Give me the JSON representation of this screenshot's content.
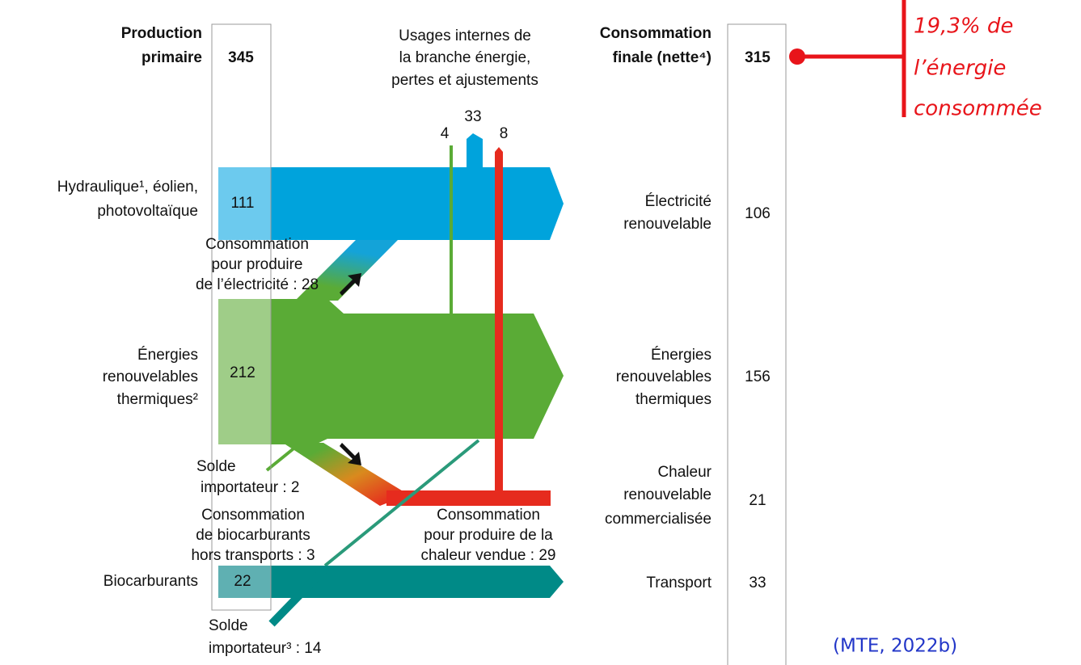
{
  "production": {
    "title": [
      "Production",
      "primaire"
    ],
    "total": "345"
  },
  "consumption": {
    "title": [
      "Consommation",
      "finale (nette⁴)"
    ],
    "total": "315"
  },
  "internal": {
    "lines": [
      "Usages internes de",
      "la branche énergie,",
      "pertes et ajustements"
    ],
    "values": [
      "4",
      "33",
      "8"
    ]
  },
  "sources": [
    {
      "lines": [
        "Hydraulique¹, éolien,",
        "photovoltaïque"
      ],
      "value": "111"
    },
    {
      "lines": [
        "Énergies",
        "renouvelables",
        "thermiques²"
      ],
      "value": "212"
    },
    {
      "lines": [
        "Biocarburants"
      ],
      "value": "22"
    }
  ],
  "uses": [
    {
      "lines": [
        "Électricité",
        "renouvelable"
      ],
      "value": "106"
    },
    {
      "lines": [
        "Énergies",
        "renouvelables",
        "thermiques"
      ],
      "value": "156"
    },
    {
      "lines": [
        "Chaleur",
        "renouvelable",
        "commercialisée"
      ],
      "value": "21"
    },
    {
      "lines": [
        "Transport"
      ],
      "value": "33"
    }
  ],
  "notes": {
    "electricity": [
      "Consommation",
      "pour produire",
      "de l’électricité : 28"
    ],
    "import1": [
      "Solde",
      "importateur : 2"
    ],
    "biofuel": [
      "Consommation",
      "de biocarburants",
      "hors transports : 3"
    ],
    "heat": [
      "Consommation",
      "pour produire de la",
      "chaleur vendue : 29"
    ],
    "import2": [
      "Solde",
      "importateur³ : 14"
    ]
  },
  "annotation": [
    "19,3% de",
    "l’énergie",
    "consommée"
  ],
  "source": "(MTE, 2022b)"
}
